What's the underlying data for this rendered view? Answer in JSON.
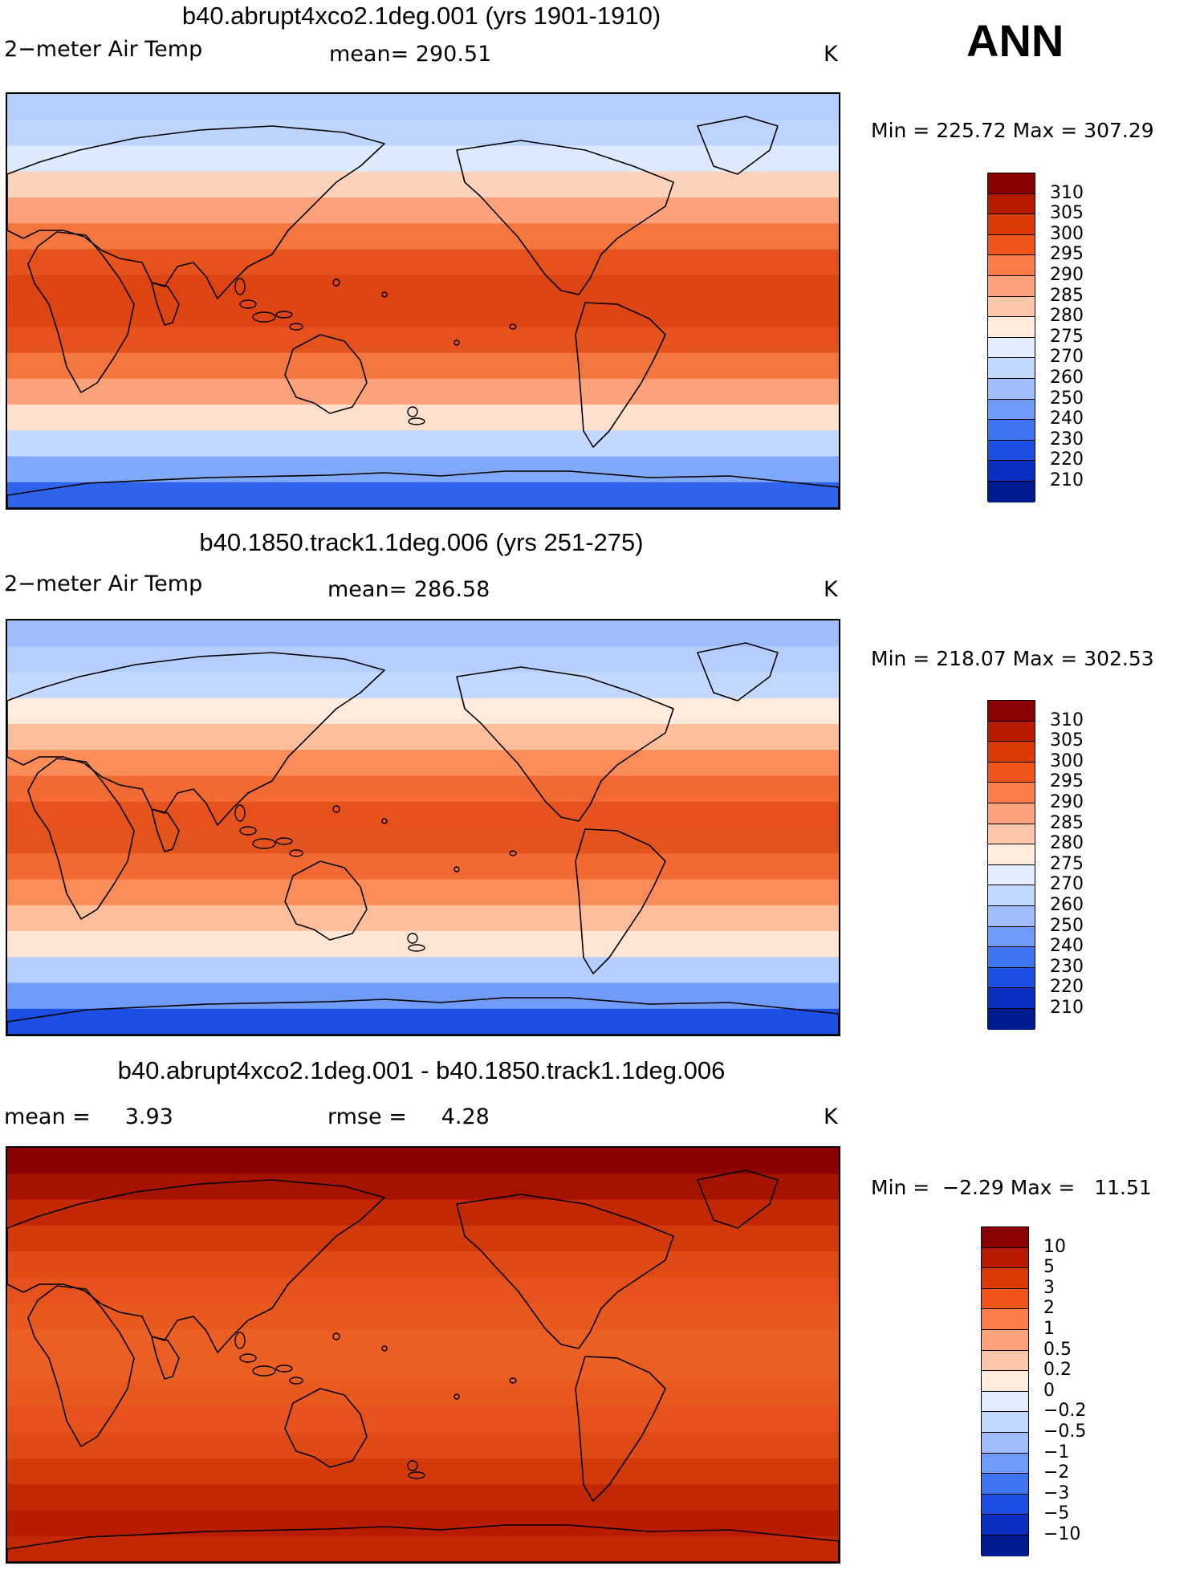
{
  "season": "ANN",
  "units": "K",
  "panels": [
    {
      "title": "b40.abrupt4xco2.1deg.001 (yrs 1901-1910)",
      "variable": "2−meter Air Temp",
      "stat1_label": "mean=",
      "stat1_value": "290.51",
      "stat2_label": "",
      "stat2_value": "",
      "units": "K",
      "min_label": "Min =",
      "min_value": "225.72",
      "max_label": "Max =",
      "max_value": "307.29",
      "colorbar_labels": [
        "310",
        "305",
        "300",
        "295",
        "290",
        "285",
        "280",
        "275",
        "270",
        "260",
        "250",
        "240",
        "230",
        "220",
        "210"
      ],
      "colorbar_colors": [
        "#8b0000",
        "#b81c00",
        "#db3a05",
        "#f2551a",
        "#f97c4a",
        "#fba27a",
        "#fdc8aa",
        "#feebdd",
        "#e2eeff",
        "#c3d8ff",
        "#9fbdfd",
        "#6f9bfa",
        "#3c74f4",
        "#1c4fe3",
        "#0a2fc0",
        "#001b8f"
      ],
      "zone_colors": [
        "#b4cefe",
        "#bcd4fe",
        "#dde9fd",
        "#fdd2ba",
        "#fba27a",
        "#f4763f",
        "#e5521b",
        "#dd4412",
        "#de4513",
        "#e5521b",
        "#f4763f",
        "#fba27a",
        "#fee0cc",
        "#c3d8ff",
        "#80a8fb",
        "#2e63ec"
      ]
    },
    {
      "title": "b40.1850.track1.1deg.006 (yrs 251-275)",
      "variable": "2−meter Air Temp",
      "stat1_label": "mean=",
      "stat1_value": "286.58",
      "stat2_label": "",
      "stat2_value": "",
      "units": "K",
      "min_label": "Min =",
      "min_value": "218.07",
      "max_label": "Max =",
      "max_value": "302.53",
      "colorbar_labels": [
        "310",
        "305",
        "300",
        "295",
        "290",
        "285",
        "280",
        "275",
        "270",
        "260",
        "250",
        "240",
        "230",
        "220",
        "210"
      ],
      "colorbar_colors": [
        "#8b0000",
        "#b81c00",
        "#db3a05",
        "#f2551a",
        "#f97c4a",
        "#fba27a",
        "#fdc8aa",
        "#feebdd",
        "#e2eeff",
        "#c3d8ff",
        "#9fbdfd",
        "#6f9bfa",
        "#3c74f4",
        "#1c4fe3",
        "#0a2fc0",
        "#001b8f"
      ],
      "zone_colors": [
        "#9fbdfd",
        "#b4cefe",
        "#c3d8ff",
        "#feebdd",
        "#fdbf9b",
        "#f98c58",
        "#f26a32",
        "#e5521b",
        "#e5531c",
        "#f26a32",
        "#f98c58",
        "#fdbf9b",
        "#fee6d4",
        "#b4cefe",
        "#6f9bfa",
        "#1c4fe3"
      ]
    },
    {
      "title": "b40.abrupt4xco2.1deg.001 - b40.1850.track1.1deg.006",
      "variable": "",
      "stat1_label": "mean =",
      "stat1_value": "3.93",
      "stat2_label": "rmse =",
      "stat2_value": "4.28",
      "units": "K",
      "min_label": "Min =",
      "min_value": "−2.29",
      "max_label": "Max =",
      "max_value": "11.51",
      "colorbar_labels": [
        "10",
        "5",
        "3",
        "2",
        "1",
        "0.5",
        "0.2",
        "0",
        "−0.2",
        "−0.5",
        "−1",
        "−2",
        "−3",
        "−5",
        "−10"
      ],
      "colorbar_colors": [
        "#8b0000",
        "#b81c00",
        "#db3a05",
        "#f2551a",
        "#f97c4a",
        "#fba27a",
        "#fdc8aa",
        "#feebdd",
        "#e2eeff",
        "#c3d8ff",
        "#9fbdfd",
        "#6f9bfa",
        "#3c74f4",
        "#1c4fe3",
        "#0a2fc0",
        "#001b8f"
      ],
      "zone_colors": [
        "#8b0000",
        "#a51200",
        "#c22803",
        "#d33a0a",
        "#e04a14",
        "#e5521b",
        "#e8581f",
        "#ec5f24",
        "#ec5f24",
        "#e8581f",
        "#e5521b",
        "#e04a14",
        "#d33a0a",
        "#c22803",
        "#b81c00",
        "#c22803"
      ]
    }
  ]
}
